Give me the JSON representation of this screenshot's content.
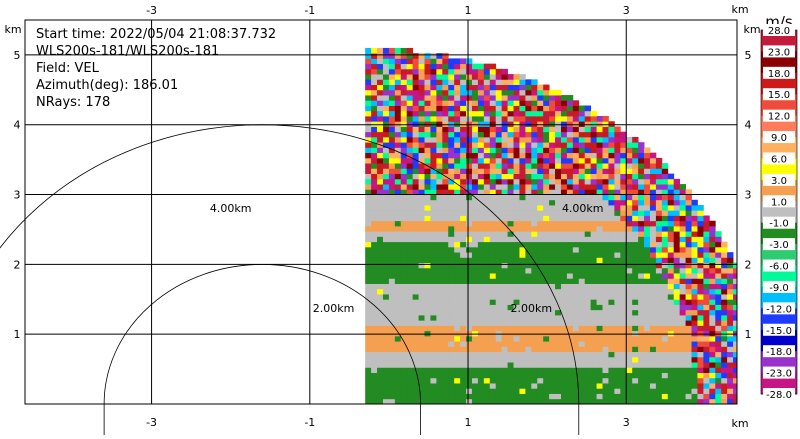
{
  "chart_data": {
    "type": "heatmap",
    "info": {
      "start_time": "Start time: 2022/05/04 21:08:37.732",
      "site": "WLS200s-181/WLS200s-181",
      "field": "Field: VEL",
      "azimuth": "Azimuth(deg): 186.01",
      "nrays": "NRays: 178"
    },
    "x_unit": "km",
    "y_unit": "km",
    "xlim": [
      -4.6,
      4.4
    ],
    "ylim": [
      0,
      5.5
    ],
    "x_ticks": [
      -3,
      -1,
      1,
      3
    ],
    "y_ticks": [
      1,
      2,
      3,
      4,
      5
    ],
    "range_rings": [
      {
        "radius_km": 2,
        "center_x": -1.6,
        "labels": [
          {
            "text": "2.00km",
            "x": -0.7,
            "y": 1.32
          },
          {
            "text": "2.00km",
            "x": 1.8,
            "y": 1.32
          }
        ]
      },
      {
        "radius_km": 4,
        "center_x": -1.6,
        "labels": [
          {
            "text": "4.00km",
            "x": -2.0,
            "y": 2.75
          },
          {
            "text": "4.00km",
            "x": 2.45,
            "y": 2.75
          }
        ]
      }
    ],
    "data_origin": [
      -0.3,
      0
    ],
    "data_max_range_km": 5.1,
    "colorbar": {
      "unit": "m/s",
      "boundaries": [
        "28.0",
        "23.0",
        "18.0",
        "15.0",
        "12.0",
        "9.0",
        "6.0",
        "3.0",
        "1.0",
        "-1.0",
        "-3.0",
        "-6.0",
        "-9.0",
        "-12.0",
        "-15.0",
        "-18.0",
        "-23.0",
        "-28.0"
      ],
      "colors": [
        "#c51b3a",
        "#8b0000",
        "#cc1a1a",
        "#f04a3a",
        "#ff7c5a",
        "#ffb060",
        "#ffff00",
        "#f5a050",
        "#bfbfbf",
        "#228b22",
        "#2ecc71",
        "#00fa9a",
        "#00bfff",
        "#1e3cff",
        "#0000cd",
        "#9932cc",
        "#c71585"
      ]
    },
    "bands": [
      {
        "y_from": 0.0,
        "y_to": 0.22,
        "color": "#228b22"
      },
      {
        "y_from": 0.22,
        "y_to": 0.55,
        "color": "#228b22"
      },
      {
        "y_from": 0.55,
        "y_to": 0.72,
        "color": "#bfbfbf"
      },
      {
        "y_from": 0.72,
        "y_to": 1.12,
        "color": "#f5a050"
      },
      {
        "y_from": 1.12,
        "y_to": 1.72,
        "color": "#bfbfbf"
      },
      {
        "y_from": 1.72,
        "y_to": 2.05,
        "color": "#228b22"
      },
      {
        "y_from": 2.05,
        "y_to": 2.3,
        "color": "#228b22"
      },
      {
        "y_from": 2.3,
        "y_to": 2.5,
        "color": "#bfbfbf"
      },
      {
        "y_from": 2.5,
        "y_to": 2.65,
        "color": "#f5a050"
      },
      {
        "y_from": 2.65,
        "y_to": 3.0,
        "color": "#bfbfbf"
      }
    ],
    "noise_start_km": 3.0,
    "noise_colors": [
      "#c71585",
      "#8b0000",
      "#ffb060",
      "#ffff00",
      "#1e3cff",
      "#00bfff",
      "#228b22",
      "#9932cc",
      "#cc1a1a",
      "#00fa9a",
      "#f04a3a",
      "#bfbfbf",
      "#c51b3a",
      "#f5a050"
    ]
  }
}
